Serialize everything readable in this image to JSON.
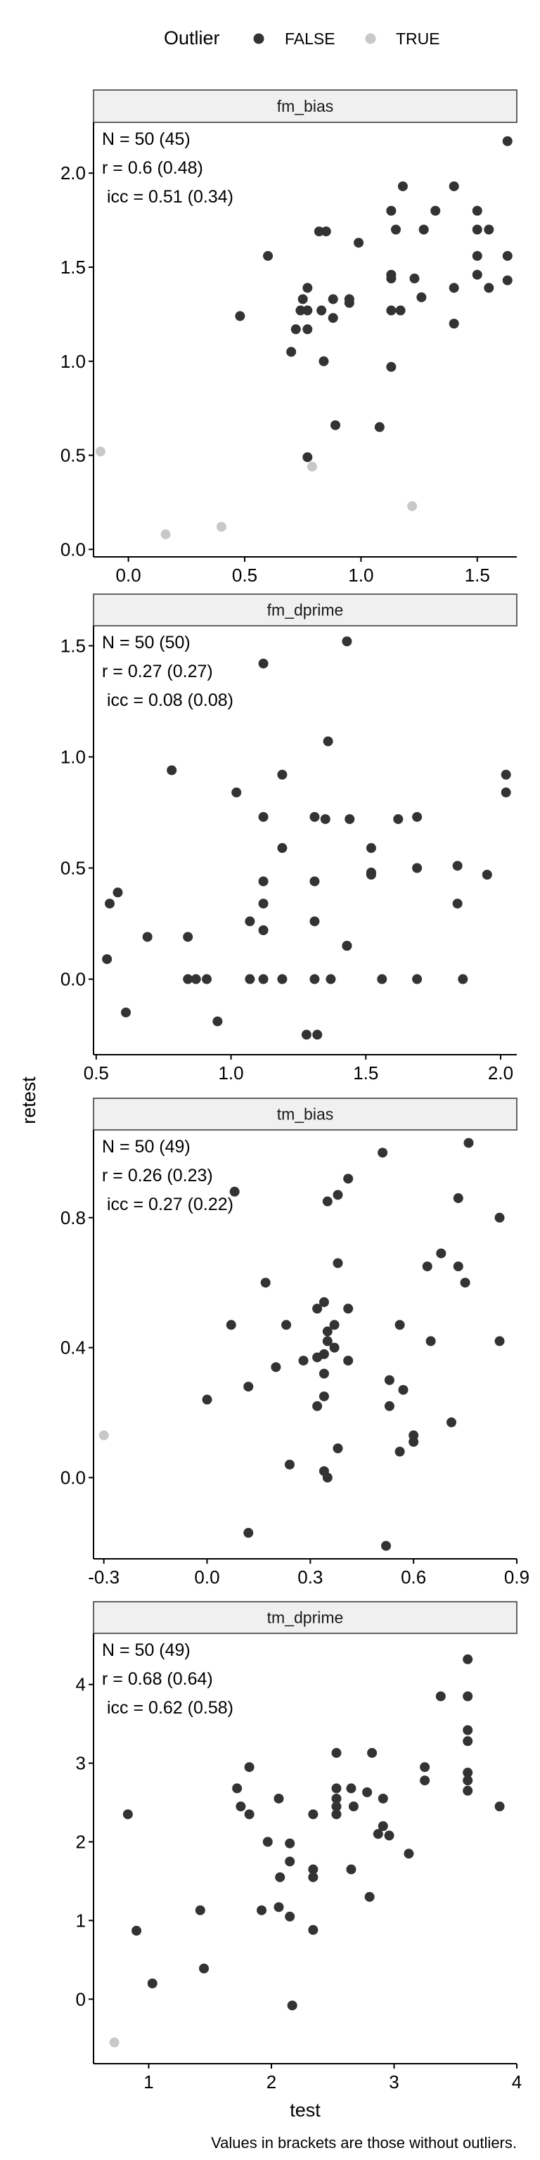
{
  "legend": {
    "title": "Outlier",
    "items": [
      {
        "label": "FALSE",
        "color": "#333333"
      },
      {
        "label": "TRUE",
        "color": "#c8c8c8"
      }
    ],
    "placement": "top"
  },
  "ylabel": "retest",
  "xlabel": "test",
  "caption": "Values in brackets are those without outliers.",
  "colors": {
    "false": "#333333",
    "true": "#c8c8c8",
    "strip": "#f0f0f0",
    "axis": "#000000"
  },
  "chart_data": [
    {
      "type": "scatter",
      "title": "fm_bias",
      "stats": [
        "N = 50 (45)",
        "r = 0.6 (0.48)",
        "icc = 0.51 (0.34)"
      ],
      "xlim": [
        -0.15,
        1.67
      ],
      "ylim": [
        -0.04,
        2.27
      ],
      "xticks": [
        0,
        0.5,
        1,
        1.5
      ],
      "xtick_labels": [
        "0.0",
        "0.5",
        "1.0",
        "1.5"
      ],
      "yticks": [
        0,
        0.5,
        1,
        1.5,
        2
      ],
      "ytick_labels": [
        "0.0",
        "0.5",
        "1.0",
        "1.5",
        "2.0"
      ],
      "points": [
        [
          1.63,
          2.17
        ],
        [
          1.18,
          1.93
        ],
        [
          1.4,
          1.93
        ],
        [
          1.13,
          1.8
        ],
        [
          1.32,
          1.8
        ],
        [
          1.5,
          1.8
        ],
        [
          1.15,
          1.7
        ],
        [
          1.27,
          1.7
        ],
        [
          1.5,
          1.7
        ],
        [
          1.55,
          1.7
        ],
        [
          0.82,
          1.69
        ],
        [
          0.85,
          1.69
        ],
        [
          0.99,
          1.63
        ],
        [
          0.6,
          1.56
        ],
        [
          1.5,
          1.56
        ],
        [
          1.63,
          1.56
        ],
        [
          1.13,
          1.46
        ],
        [
          1.13,
          1.44
        ],
        [
          1.23,
          1.44
        ],
        [
          1.5,
          1.46
        ],
        [
          1.63,
          1.43
        ],
        [
          1.4,
          1.39
        ],
        [
          1.55,
          1.39
        ],
        [
          0.77,
          1.39
        ],
        [
          0.75,
          1.33
        ],
        [
          0.88,
          1.33
        ],
        [
          0.95,
          1.33
        ],
        [
          0.95,
          1.31
        ],
        [
          1.26,
          1.34
        ],
        [
          0.74,
          1.27
        ],
        [
          0.77,
          1.27
        ],
        [
          0.83,
          1.27
        ],
        [
          1.13,
          1.27
        ],
        [
          1.17,
          1.27
        ],
        [
          0.48,
          1.24
        ],
        [
          0.88,
          1.23
        ],
        [
          0.72,
          1.17
        ],
        [
          0.77,
          1.17
        ],
        [
          0.7,
          1.05
        ],
        [
          0.84,
          1.0
        ],
        [
          1.4,
          1.2
        ],
        [
          1.13,
          0.97
        ],
        [
          0.89,
          0.66
        ],
        [
          1.08,
          0.65
        ],
        [
          0.77,
          0.49
        ]
      ],
      "outliers": [
        [
          -0.12,
          0.52
        ],
        [
          0.79,
          0.44
        ],
        [
          0.16,
          0.08
        ],
        [
          0.4,
          0.12
        ],
        [
          1.22,
          0.23
        ]
      ]
    },
    {
      "type": "scatter",
      "title": "fm_dprime",
      "stats": [
        "N = 50 (50)",
        "r = 0.27 (0.27)",
        "icc = 0.08 (0.08)"
      ],
      "xlim": [
        0.49,
        2.06
      ],
      "ylim": [
        -0.34,
        1.59
      ],
      "xticks": [
        0.5,
        1,
        1.5,
        2
      ],
      "xtick_labels": [
        "0.5",
        "1.0",
        "1.5",
        "2.0"
      ],
      "yticks": [
        0,
        0.5,
        1,
        1.5
      ],
      "ytick_labels": [
        "0.0",
        "0.5",
        "1.0",
        "1.5"
      ],
      "points": [
        [
          1.43,
          1.52
        ],
        [
          1.12,
          1.42
        ],
        [
          1.36,
          1.07
        ],
        [
          0.78,
          0.94
        ],
        [
          1.19,
          0.92
        ],
        [
          2.02,
          0.92
        ],
        [
          1.02,
          0.84
        ],
        [
          2.02,
          0.84
        ],
        [
          1.12,
          0.73
        ],
        [
          1.31,
          0.73
        ],
        [
          1.35,
          0.72
        ],
        [
          1.44,
          0.72
        ],
        [
          1.62,
          0.72
        ],
        [
          1.69,
          0.73
        ],
        [
          1.19,
          0.59
        ],
        [
          1.52,
          0.59
        ],
        [
          1.84,
          0.51
        ],
        [
          1.95,
          0.47
        ],
        [
          1.52,
          0.47
        ],
        [
          1.52,
          0.48
        ],
        [
          1.69,
          0.5
        ],
        [
          0.55,
          0.34
        ],
        [
          0.58,
          0.39
        ],
        [
          1.12,
          0.44
        ],
        [
          1.31,
          0.44
        ],
        [
          1.12,
          0.34
        ],
        [
          1.84,
          0.34
        ],
        [
          1.07,
          0.26
        ],
        [
          1.12,
          0.22
        ],
        [
          1.31,
          0.26
        ],
        [
          0.54,
          0.09
        ],
        [
          0.69,
          0.19
        ],
        [
          0.84,
          0.19
        ],
        [
          1.43,
          0.15
        ],
        [
          0.84,
          0.0
        ],
        [
          0.87,
          0.0
        ],
        [
          0.91,
          0.0
        ],
        [
          1.07,
          0.0
        ],
        [
          1.12,
          0.0
        ],
        [
          1.19,
          0.0
        ],
        [
          1.31,
          0.0
        ],
        [
          1.37,
          0.0
        ],
        [
          1.56,
          0.0
        ],
        [
          1.69,
          0.0
        ],
        [
          1.86,
          0.0
        ],
        [
          0.61,
          -0.15
        ],
        [
          0.95,
          -0.19
        ],
        [
          1.28,
          -0.25
        ],
        [
          1.32,
          -0.25
        ],
        [
          1.43,
          0.15
        ]
      ],
      "outliers": []
    },
    {
      "type": "scatter",
      "title": "tm_bias",
      "stats": [
        "N = 50 (49)",
        "r = 0.26 (0.23)",
        "icc = 0.27 (0.22)"
      ],
      "xlim": [
        -0.33,
        0.9
      ],
      "ylim": [
        -0.25,
        1.07
      ],
      "xticks": [
        -0.3,
        0,
        0.3,
        0.6,
        0.9
      ],
      "xtick_labels": [
        "-0.3",
        "0.0",
        "0.3",
        "0.6",
        "0.9"
      ],
      "yticks": [
        0,
        0.4,
        0.8
      ],
      "ytick_labels": [
        "0.0",
        "0.4",
        "0.8"
      ],
      "points": [
        [
          0.76,
          1.03
        ],
        [
          0.51,
          1.0
        ],
        [
          0.41,
          0.92
        ],
        [
          0.08,
          0.88
        ],
        [
          0.38,
          0.87
        ],
        [
          0.35,
          0.85
        ],
        [
          0.73,
          0.86
        ],
        [
          0.85,
          0.8
        ],
        [
          0.38,
          0.66
        ],
        [
          0.68,
          0.69
        ],
        [
          0.64,
          0.65
        ],
        [
          0.73,
          0.65
        ],
        [
          0.75,
          0.6
        ],
        [
          0.17,
          0.6
        ],
        [
          0.34,
          0.54
        ],
        [
          0.32,
          0.52
        ],
        [
          0.41,
          0.52
        ],
        [
          0.37,
          0.47
        ],
        [
          0.07,
          0.47
        ],
        [
          0.23,
          0.47
        ],
        [
          0.56,
          0.47
        ],
        [
          0.35,
          0.45
        ],
        [
          0.35,
          0.42
        ],
        [
          0.37,
          0.4
        ],
        [
          0.65,
          0.42
        ],
        [
          0.85,
          0.42
        ],
        [
          0.34,
          0.38
        ],
        [
          0.28,
          0.36
        ],
        [
          0.41,
          0.36
        ],
        [
          0.2,
          0.34
        ],
        [
          0.34,
          0.32
        ],
        [
          0.53,
          0.3
        ],
        [
          0.12,
          0.28
        ],
        [
          0.34,
          0.25
        ],
        [
          0.57,
          0.27
        ],
        [
          0.0,
          0.24
        ],
        [
          0.32,
          0.22
        ],
        [
          0.53,
          0.22
        ],
        [
          0.71,
          0.17
        ],
        [
          0.6,
          0.13
        ],
        [
          0.6,
          0.11
        ],
        [
          0.38,
          0.09
        ],
        [
          0.56,
          0.08
        ],
        [
          0.24,
          0.04
        ],
        [
          0.35,
          0.0
        ],
        [
          0.12,
          -0.17
        ],
        [
          0.52,
          -0.21
        ],
        [
          0.34,
          0.02
        ],
        [
          0.32,
          0.37
        ]
      ],
      "outliers": [
        [
          -0.3,
          0.13
        ]
      ]
    },
    {
      "type": "scatter",
      "title": "tm_dprime",
      "stats": [
        "N = 50 (49)",
        "r = 0.68 (0.64)",
        "icc = 0.62 (0.58)"
      ],
      "xlim": [
        0.55,
        4.0
      ],
      "ylim": [
        -0.82,
        4.65
      ],
      "xticks": [
        1,
        2,
        3,
        4
      ],
      "xtick_labels": [
        "1",
        "2",
        "3",
        "4"
      ],
      "yticks": [
        0,
        1,
        2,
        3,
        4
      ],
      "ytick_labels": [
        "0",
        "1",
        "2",
        "3",
        "4"
      ],
      "points": [
        [
          3.6,
          4.32
        ],
        [
          3.38,
          3.85
        ],
        [
          3.6,
          3.85
        ],
        [
          3.6,
          3.42
        ],
        [
          3.6,
          3.28
        ],
        [
          2.53,
          3.13
        ],
        [
          2.82,
          3.13
        ],
        [
          1.72,
          2.68
        ],
        [
          1.82,
          2.95
        ],
        [
          2.53,
          2.68
        ],
        [
          2.53,
          2.45
        ],
        [
          2.53,
          2.55
        ],
        [
          2.65,
          2.68
        ],
        [
          2.78,
          2.63
        ],
        [
          2.67,
          2.45
        ],
        [
          2.91,
          2.55
        ],
        [
          3.25,
          2.95
        ],
        [
          3.25,
          2.78
        ],
        [
          3.6,
          2.88
        ],
        [
          3.6,
          2.78
        ],
        [
          3.6,
          2.65
        ],
        [
          3.86,
          2.45
        ],
        [
          0.83,
          2.35
        ],
        [
          1.75,
          2.45
        ],
        [
          1.82,
          2.35
        ],
        [
          2.06,
          2.55
        ],
        [
          2.34,
          2.35
        ],
        [
          2.53,
          2.35
        ],
        [
          2.91,
          2.2
        ],
        [
          2.96,
          2.08
        ],
        [
          3.12,
          1.85
        ],
        [
          1.97,
          2.0
        ],
        [
          2.15,
          1.98
        ],
        [
          2.87,
          2.1
        ],
        [
          2.07,
          1.55
        ],
        [
          2.34,
          1.65
        ],
        [
          2.34,
          1.55
        ],
        [
          2.65,
          1.65
        ],
        [
          2.15,
          1.75
        ],
        [
          1.92,
          1.13
        ],
        [
          2.06,
          1.17
        ],
        [
          2.15,
          1.05
        ],
        [
          2.34,
          0.88
        ],
        [
          1.42,
          1.13
        ],
        [
          0.9,
          0.87
        ],
        [
          2.8,
          1.3
        ],
        [
          1.03,
          0.2
        ],
        [
          1.45,
          0.39
        ],
        [
          2.17,
          -0.08
        ]
      ],
      "outliers": [
        [
          0.72,
          -0.55
        ]
      ]
    }
  ]
}
